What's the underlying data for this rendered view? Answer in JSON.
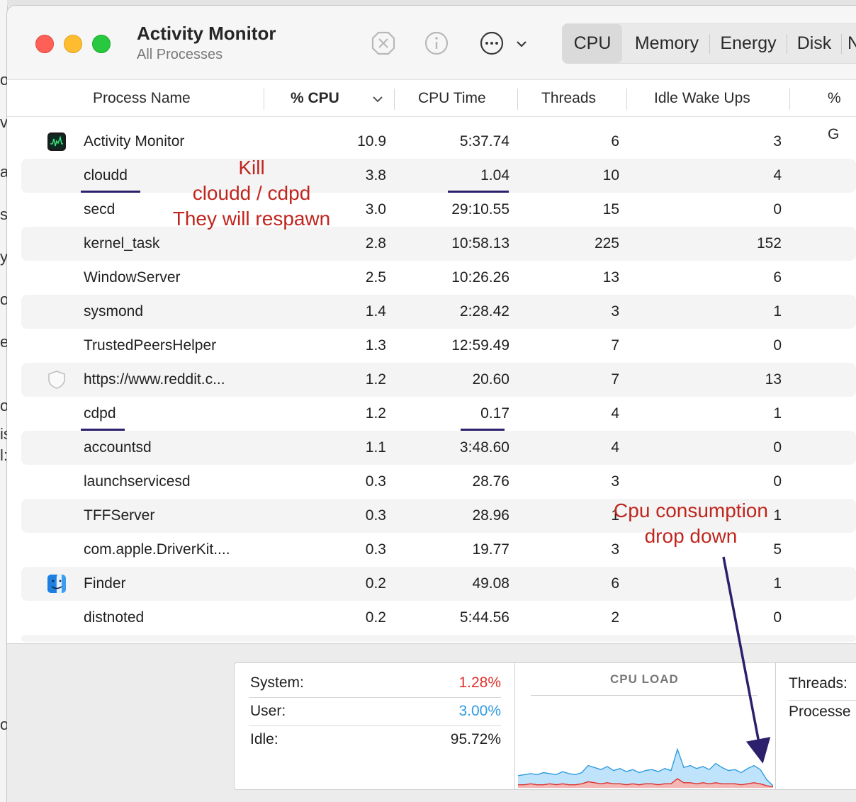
{
  "window": {
    "title": "Activity Monitor",
    "subtitle": "All Processes"
  },
  "toolbar": {
    "stop_icon": "stop-process-icon",
    "info_icon": "info-icon",
    "more_icon": "ellipsis-circle-icon",
    "tabs": [
      "CPU",
      "Memory",
      "Energy",
      "Disk",
      "N"
    ],
    "active_tab": "CPU"
  },
  "columns": {
    "name": "Process Name",
    "cpu": "% CPU",
    "time": "CPU Time",
    "threads": "Threads",
    "idle": "Idle Wake Ups",
    "gpu": "% G"
  },
  "rows": [
    {
      "name": "Activity Monitor",
      "cpu": "10.9",
      "time": "5:37.74",
      "threads": "6",
      "idle": "3"
    },
    {
      "name": "cloudd",
      "cpu": "3.8",
      "time": "1.04",
      "threads": "10",
      "idle": "4"
    },
    {
      "name": "secd",
      "cpu": "3.0",
      "time": "29:10.55",
      "threads": "15",
      "idle": "0"
    },
    {
      "name": "kernel_task",
      "cpu": "2.8",
      "time": "10:58.13",
      "threads": "225",
      "idle": "152"
    },
    {
      "name": "WindowServer",
      "cpu": "2.5",
      "time": "10:26.26",
      "threads": "13",
      "idle": "6"
    },
    {
      "name": "sysmond",
      "cpu": "1.4",
      "time": "2:28.42",
      "threads": "3",
      "idle": "1"
    },
    {
      "name": "TrustedPeersHelper",
      "cpu": "1.3",
      "time": "12:59.49",
      "threads": "7",
      "idle": "0"
    },
    {
      "name": "https://www.reddit.c...",
      "cpu": "1.2",
      "time": "20.60",
      "threads": "7",
      "idle": "13"
    },
    {
      "name": "cdpd",
      "cpu": "1.2",
      "time": "0.17",
      "threads": "4",
      "idle": "1"
    },
    {
      "name": "accountsd",
      "cpu": "1.1",
      "time": "3:48.60",
      "threads": "4",
      "idle": "0"
    },
    {
      "name": "launchservicesd",
      "cpu": "0.3",
      "time": "28.76",
      "threads": "3",
      "idle": "0"
    },
    {
      "name": "TFFServer",
      "cpu": "0.3",
      "time": "28.96",
      "threads": "1",
      "idle": "1"
    },
    {
      "name": "com.apple.DriverKit....",
      "cpu": "0.3",
      "time": "19.77",
      "threads": "3",
      "idle": "5"
    },
    {
      "name": "Finder",
      "cpu": "0.2",
      "time": "49.08",
      "threads": "6",
      "idle": "1"
    },
    {
      "name": "distnoted",
      "cpu": "0.2",
      "time": "5:44.56",
      "threads": "2",
      "idle": "0"
    }
  ],
  "annotations": {
    "kill_line1": "Kill",
    "kill_line2": "cloudd / cdpd",
    "kill_line3": "They will respawn",
    "drop_line1": "Cpu consumption",
    "drop_line2": "drop down",
    "color": "#c0251e",
    "underline_color": "#2c1f6b"
  },
  "stats": {
    "system_label": "System:",
    "system_value": "1.28%",
    "user_label": "User:",
    "user_value": "3.00%",
    "idle_label": "Idle:",
    "idle_value": "95.72%",
    "graph_title": "CPU LOAD",
    "threads_label": "Threads:",
    "processes_label": "Processe",
    "system_color": "#e0302b",
    "user_color": "#2f9ce0"
  },
  "cpu_load_user_series": [
    12,
    13,
    14,
    13,
    15,
    14,
    13,
    16,
    14,
    13,
    15,
    22,
    20,
    18,
    21,
    17,
    19,
    16,
    18,
    15,
    17,
    18,
    16,
    19,
    17,
    38,
    20,
    22,
    19,
    21,
    18,
    24,
    20,
    17,
    18,
    15,
    19,
    22,
    18,
    8,
    2
  ],
  "cpu_load_system_series": [
    3,
    3,
    4,
    3,
    3,
    4,
    3,
    4,
    3,
    3,
    4,
    6,
    5,
    4,
    5,
    4,
    4,
    3,
    4,
    3,
    4,
    4,
    3,
    4,
    4,
    9,
    5,
    5,
    4,
    5,
    4,
    5,
    4,
    4,
    4,
    3,
    4,
    5,
    4,
    2,
    1
  ],
  "background_fragments": [
    "ob",
    "ve",
    "ar",
    "s",
    "y",
    "o",
    "ee",
    "o",
    "is",
    "l:",
    "o"
  ]
}
